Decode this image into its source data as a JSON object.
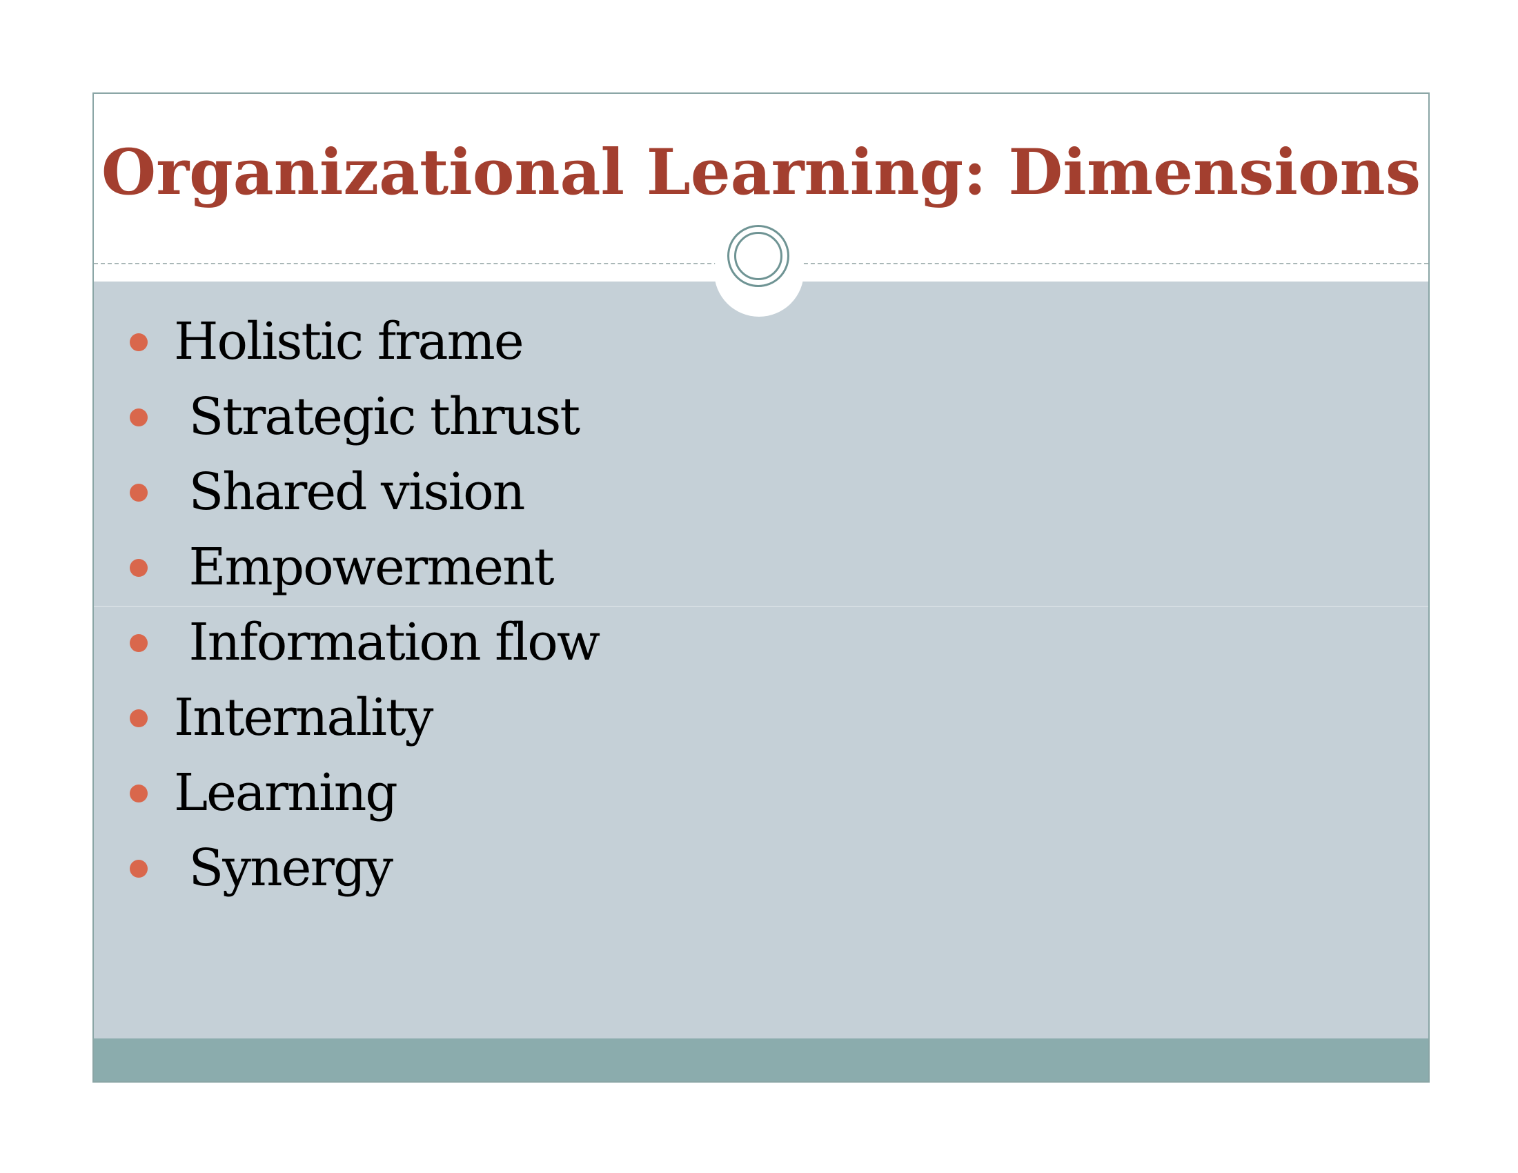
{
  "slide": {
    "title": "Organizational Learning: Dimensions",
    "bullets": [
      "Holistic frame",
      " Strategic thrust",
      " Shared vision",
      " Empowerment",
      " Information flow",
      "Internality",
      "Learning",
      " Synergy"
    ]
  },
  "colors": {
    "title": "#a33f2f",
    "content_background": "#c5d0d7",
    "footer_bar": "#8bacad",
    "bullet_marker": "#d9674c",
    "border": "#8aa5a5"
  },
  "icons": {
    "ornament": "double-circle-icon",
    "bullet": "dot-icon"
  }
}
